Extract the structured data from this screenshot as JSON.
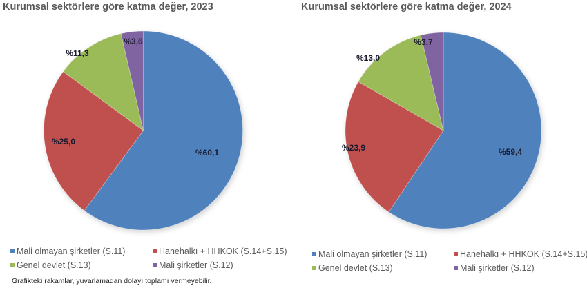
{
  "colors": {
    "mali_olmayan": "#4F81BD",
    "hanehalki": "#C0504D",
    "genel_devlet": "#9BBB59",
    "mali": "#8064A2"
  },
  "legend": [
    {
      "label": "Mali olmayan şirketler (S.11)",
      "color": "#4F81BD"
    },
    {
      "label": "Hanehalkı + HHKOK (S.14+S.15)",
      "color": "#C0504D"
    },
    {
      "label": "Genel devlet (S.13)",
      "color": "#9BBB59"
    },
    {
      "label": "Mali şirketler (S.12)",
      "color": "#8064A2"
    }
  ],
  "footnote": "Grafikteki rakamlar, yuvarlamadan dolayı toplamı vermeyebilir.",
  "chart_data": [
    {
      "type": "pie",
      "title": "Kurumsal sektörlere göre katma değer, 2023",
      "categories": [
        "Mali olmayan şirketler (S.11)",
        "Hanehalkı + HHKOK (S.14+S.15)",
        "Genel devlet (S.13)",
        "Mali şirketler (S.12)"
      ],
      "values": [
        60.1,
        25.0,
        11.3,
        3.6
      ],
      "labels": [
        "%60,1",
        "%25,0",
        "%11,3",
        "%3,6"
      ],
      "colors": [
        "#4F81BD",
        "#C0504D",
        "#9BBB59",
        "#8064A2"
      ],
      "start_angle_deg": 0,
      "direction": "clockwise",
      "legend_position": "bottom"
    },
    {
      "type": "pie",
      "title": "Kurumsal sektörlere göre katma değer, 2024",
      "categories": [
        "Mali olmayan şirketler (S.11)",
        "Hanehalkı + HHKOK (S.14+S.15)",
        "Genel devlet (S.13)",
        "Mali şirketler (S.12)"
      ],
      "values": [
        59.4,
        23.9,
        13.0,
        3.7
      ],
      "labels": [
        "%59,4",
        "%23,9",
        "%13,0",
        "%3,7"
      ],
      "colors": [
        "#4F81BD",
        "#C0504D",
        "#9BBB59",
        "#8064A2"
      ],
      "start_angle_deg": 0,
      "direction": "clockwise",
      "legend_position": "bottom"
    }
  ]
}
